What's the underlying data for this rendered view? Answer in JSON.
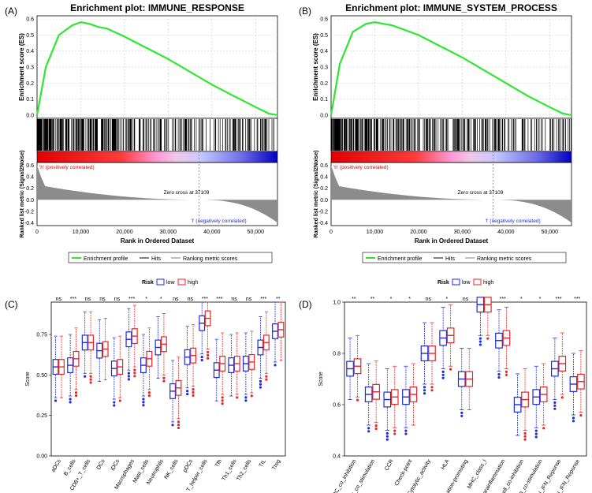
{
  "panels": {
    "A": "(A)",
    "B": "(B)",
    "C": "(C)",
    "D": "(D)"
  },
  "gsea": [
    {
      "title": "Enrichment plot: IMMUNE_RESPONSE"
    },
    {
      "title": "Enrichment plot: IMMUNE_SYSTEM_PROCESS"
    }
  ],
  "gsea_common": {
    "es_ylabel": "Enrichment score (ES)",
    "es_ticks": [
      "0.6",
      "0.5",
      "0.4",
      "0.3",
      "0.2",
      "0.1",
      "0.0"
    ],
    "rank_ylabel": "Ranked list metric (Signal2Noise)",
    "rank_ticks": [
      "0.6",
      "0.4",
      "0.2",
      "0.0",
      "-0.2",
      "-0.4"
    ],
    "pos_label": "'h' (positively correlated)",
    "neg_label": "'l' (negatively correlated)",
    "zero_cross": "Zero cross at 37109",
    "xlabel": "Rank in Ordered Dataset",
    "x_ticks": [
      "0",
      "10,000",
      "20,000",
      "30,000",
      "40,000",
      "50,000"
    ],
    "legend": [
      "Enrichment profile",
      "Hits",
      "Ranking metric scores"
    ]
  },
  "box_common": {
    "risk_label": "Risk",
    "low": "low",
    "high": "high",
    "ylabel": "Score",
    "low_color": "#1f2bd6",
    "high_color": "#e8262a"
  },
  "chart_data": [
    {
      "type": "line",
      "title": "Enrichment plot: IMMUNE_RESPONSE",
      "xlabel": "Rank in Ordered Dataset",
      "ylabel": "Enrichment score (ES)",
      "x": [
        0,
        2000,
        5000,
        8000,
        10000,
        12000,
        14000,
        16000,
        20000,
        25000,
        30000,
        35000,
        40000,
        45000,
        50000,
        53000,
        55000
      ],
      "y": [
        0,
        0.3,
        0.5,
        0.56,
        0.58,
        0.57,
        0.55,
        0.54,
        0.49,
        0.42,
        0.35,
        0.27,
        0.19,
        0.12,
        0.05,
        0.01,
        0
      ],
      "xlim": [
        0,
        55000
      ],
      "ylim": [
        -0.02,
        0.62
      ]
    },
    {
      "type": "line",
      "title": "Enrichment plot: IMMUNE_SYSTEM_PROCESS",
      "xlabel": "Rank in Ordered Dataset",
      "ylabel": "Enrichment score (ES)",
      "x": [
        0,
        2000,
        5000,
        8000,
        10000,
        12000,
        14000,
        16000,
        20000,
        25000,
        30000,
        35000,
        40000,
        45000,
        50000,
        53000,
        55000
      ],
      "y": [
        0,
        0.32,
        0.52,
        0.57,
        0.58,
        0.57,
        0.56,
        0.54,
        0.5,
        0.43,
        0.36,
        0.28,
        0.2,
        0.12,
        0.05,
        0.01,
        0
      ],
      "xlim": [
        0,
        55000
      ],
      "ylim": [
        -0.02,
        0.62
      ]
    },
    {
      "type": "box",
      "ylabel": "Score",
      "ylim": [
        0,
        0.95
      ],
      "y_ticks": [
        "0.00",
        "0.25",
        "0.50",
        "0.75"
      ],
      "categories": [
        "aDCs",
        "B_cells",
        "CD8+_T_cells",
        "DCs",
        "iDCs",
        "Macrophages",
        "Mast_cells",
        "Neutrophils",
        "NK_cells",
        "pDCs",
        "T_helper_cells",
        "Tfh",
        "Th1_cells",
        "Th2_cells",
        "TIL",
        "Treg"
      ],
      "significance": [
        "ns",
        "***",
        "ns",
        "ns",
        "ns",
        "***",
        "*",
        "*",
        "ns",
        "ns",
        "***",
        "***",
        "ns",
        "ns",
        "***",
        "**"
      ],
      "series": [
        {
          "name": "low",
          "medians": [
            0.55,
            0.56,
            0.7,
            0.65,
            0.54,
            0.72,
            0.56,
            0.67,
            0.4,
            0.61,
            0.82,
            0.53,
            0.56,
            0.57,
            0.67,
            0.77
          ]
        },
        {
          "name": "high",
          "medians": [
            0.55,
            0.6,
            0.7,
            0.66,
            0.55,
            0.74,
            0.6,
            0.69,
            0.42,
            0.62,
            0.85,
            0.57,
            0.57,
            0.58,
            0.7,
            0.78
          ]
        }
      ]
    },
    {
      "type": "box",
      "ylabel": "Score",
      "ylim": [
        0.4,
        1.0
      ],
      "y_ticks": [
        "0.4",
        "0.6",
        "0.8",
        "1.0"
      ],
      "categories": [
        "APC_co_inhibition",
        "APC_co_stimulation",
        "CCR",
        "Check-point",
        "Cytolytic_activity",
        "HLA",
        "Inflammation-promoting",
        "MHC_class_I",
        "Parainflammation",
        "T_cell_co-inhibition",
        "T_cell_co-stimulation",
        "Type_I_IFN_Reponse",
        "Type_II_IFN_Reponse"
      ],
      "significance": [
        "**",
        "**",
        "*",
        "*",
        "ns",
        "*",
        "ns",
        "ns",
        "***",
        "*",
        "*",
        "***",
        "***"
      ],
      "series": [
        {
          "name": "low",
          "medians": [
            0.74,
            0.64,
            0.62,
            0.63,
            0.8,
            0.86,
            0.7,
            0.99,
            0.85,
            0.6,
            0.63,
            0.74,
            0.68
          ]
        },
        {
          "name": "high",
          "medians": [
            0.75,
            0.65,
            0.63,
            0.64,
            0.8,
            0.87,
            0.7,
            0.99,
            0.86,
            0.62,
            0.64,
            0.76,
            0.69
          ]
        }
      ]
    }
  ]
}
